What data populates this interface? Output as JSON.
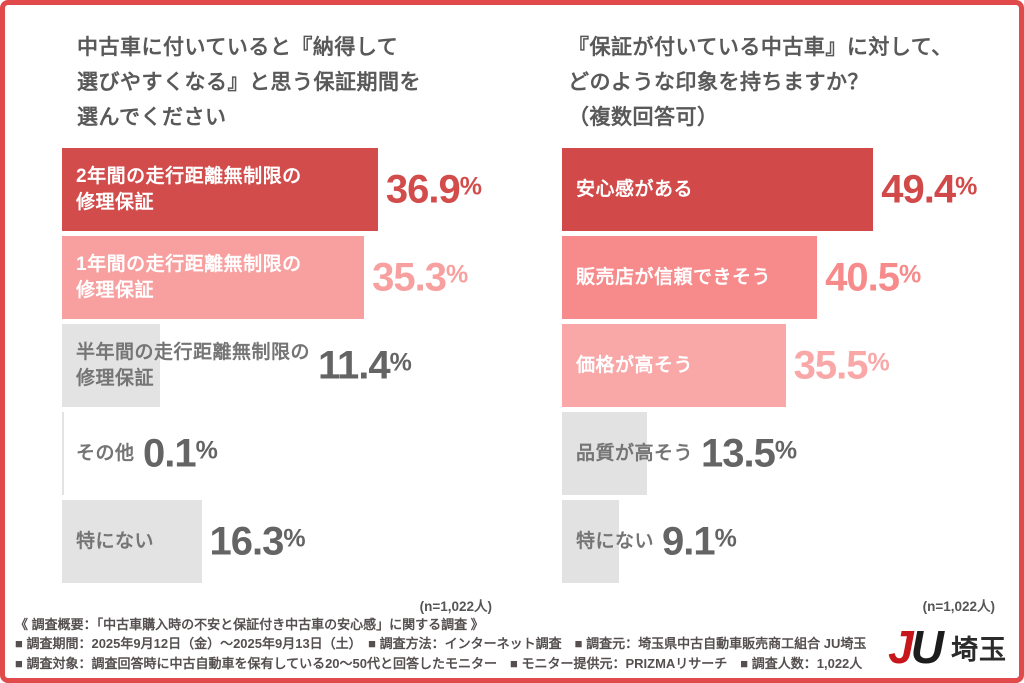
{
  "palette": {
    "frame_border": "#E04A4A",
    "title_text": "#595959",
    "footer_text": "#554F4F",
    "gray_bar": "#E3E3E3",
    "logo_red": "#C8161D",
    "logo_black": "#1C1C1C"
  },
  "chart_data": [
    {
      "type": "bar",
      "orientation": "horizontal",
      "title": "中古車に付いていると『納得して\n選びやすくなる』と思う保証期間を\n選んでください",
      "unit": "%",
      "xlim": [
        0,
        45
      ],
      "grid": false,
      "legend": "none",
      "n_label": "(n=1,022人)",
      "categories": [
        "2年間の走行距離無制限の修理保証",
        "1年間の走行距離無制限の修理保証",
        "半年間の走行距離無制限の修理保証",
        "その他",
        "特にない"
      ],
      "values": [
        36.9,
        35.3,
        11.4,
        0.1,
        16.3
      ],
      "items": [
        {
          "label": "2年間の走行距離無制限の\n修理保証",
          "value": 36.9,
          "bar_color": "#D34C4C",
          "value_color": "#D34C4C",
          "label_color": "#FFFFFF"
        },
        {
          "label": "1年間の走行距離無制限の\n修理保証",
          "value": 35.3,
          "bar_color": "#F8A0A0",
          "value_color": "#F8A0A0",
          "label_color": "#FFFFFF"
        },
        {
          "label": "半年間の走行距離無制限の\n修理保証",
          "value": 11.4,
          "bar_color": "#E3E3E3",
          "value_color": "#646464",
          "label_color": "#757575"
        },
        {
          "label": "その他",
          "value": 0.1,
          "bar_color": "#E3E3E3",
          "value_color": "#646464",
          "label_color": "#757575"
        },
        {
          "label": "特にない",
          "value": 16.3,
          "bar_color": "#E3E3E3",
          "value_color": "#646464",
          "label_color": "#757575"
        }
      ]
    },
    {
      "type": "bar",
      "orientation": "horizontal",
      "title": "『保証が付いている中古車』に対して、\nどのような印象を持ちますか？\n（複数回答可）",
      "unit": "%",
      "xlim": [
        0,
        55
      ],
      "grid": false,
      "legend": "none",
      "n_label": "(n=1,022人)",
      "categories": [
        "安心感がある",
        "販売店が信頼できそう",
        "価格が高そう",
        "品質が高そう",
        "特にない"
      ],
      "values": [
        49.4,
        40.5,
        35.5,
        13.5,
        9.1
      ],
      "items": [
        {
          "label": "安心感がある",
          "value": 49.4,
          "bar_color": "#D14949",
          "value_color": "#D14949",
          "label_color": "#FFFFFF"
        },
        {
          "label": "販売店が信頼できそう",
          "value": 40.5,
          "bar_color": "#F78A8A",
          "value_color": "#F78A8A",
          "label_color": "#FFFFFF"
        },
        {
          "label": "価格が高そう",
          "value": 35.5,
          "bar_color": "#F9A7A7",
          "value_color": "#F9A7A7",
          "label_color": "#FFFFFF"
        },
        {
          "label": "品質が高そう",
          "value": 13.5,
          "bar_color": "#E2E2E2",
          "value_color": "#646464",
          "label_color": "#757575"
        },
        {
          "label": "特にない",
          "value": 9.1,
          "bar_color": "#E2E2E2",
          "value_color": "#646464",
          "label_color": "#757575"
        }
      ]
    }
  ],
  "footer": {
    "lines": [
      "《 調査概要：「中古車購入時の不安と保証付き中古車の安心感」に関する調査 》",
      "■ 調査期間：2025年9月12日（金）〜2025年9月13日（土）　■ 調査方法：インターネット調査　■ 調査元：埼玉県中古自動車販売商工組合 JU埼玉",
      "■ 調査対象：調査回答時に中古自動車を保有している20〜50代と回答したモニター　■ モニター提供元：PRIZMAリサーチ　■ 調査人数：1,022人"
    ],
    "logo": {
      "j": "J",
      "u": "U",
      "region": "埼玉"
    }
  }
}
